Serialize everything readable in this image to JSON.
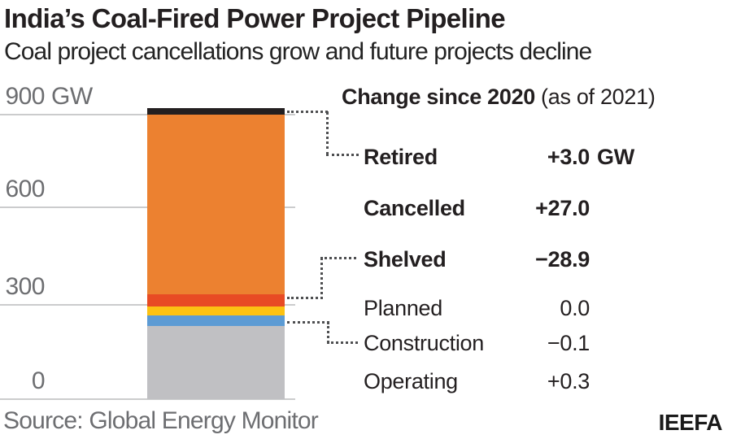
{
  "header": {
    "title": "India’s Coal-Fired Power Project Pipeline",
    "subtitle": "Coal project cancellations grow and future projects decline"
  },
  "chart_data": {
    "type": "bar",
    "title": "India’s Coal-Fired Power Project Pipeline",
    "subtitle": "Coal project cancellations grow and future projects decline",
    "unit": "GW",
    "axis": {
      "ylim": [
        0,
        900
      ],
      "ticks": [
        {
          "label": "900",
          "unit": "GW",
          "value": 900
        },
        {
          "label": "600",
          "value": 600
        },
        {
          "label": "300",
          "value": 300
        },
        {
          "label": "0",
          "value": 0
        }
      ],
      "grid": true
    },
    "stack_order_top_to_bottom": [
      "Retired",
      "Cancelled",
      "Shelved",
      "Planned",
      "Construction",
      "Operating"
    ],
    "segments": [
      {
        "name": "Retired",
        "value_gw": 20,
        "color": "#231f20"
      },
      {
        "name": "Cancelled",
        "value_gw": 567,
        "color": "#ec8130"
      },
      {
        "name": "Shelved",
        "value_gw": 39,
        "color": "#e84b24"
      },
      {
        "name": "Planned",
        "value_gw": 28,
        "color": "#fcc213"
      },
      {
        "name": "Construction",
        "value_gw": 34,
        "color": "#5c9bd4"
      },
      {
        "name": "Operating",
        "value_gw": 230,
        "color": "#c0c0c3"
      }
    ],
    "total_gw_approx": 918,
    "legend_position": "right"
  },
  "legend": {
    "heading_bold": "Change since 2020",
    "heading_note": "(as of 2021)",
    "rows": [
      {
        "label": "Retired",
        "value": "+3.0",
        "unit": "GW"
      },
      {
        "label": "Cancelled",
        "value": "+27.0",
        "unit": ""
      },
      {
        "label": "Shelved",
        "value": "−28.9",
        "unit": ""
      },
      {
        "label": "Planned",
        "value": "0.0",
        "unit": ""
      },
      {
        "label": "Construction",
        "value": "−0.1",
        "unit": ""
      },
      {
        "label": "Operating",
        "value": "+0.3",
        "unit": ""
      }
    ]
  },
  "footer": {
    "source": "Source: Global Energy Monitor",
    "credit": "IEEFA"
  },
  "colors": {
    "gridline": "#cbcccd",
    "axis_text": "#6d6e71",
    "connector": "#4e4f51",
    "text": "#231f20"
  }
}
